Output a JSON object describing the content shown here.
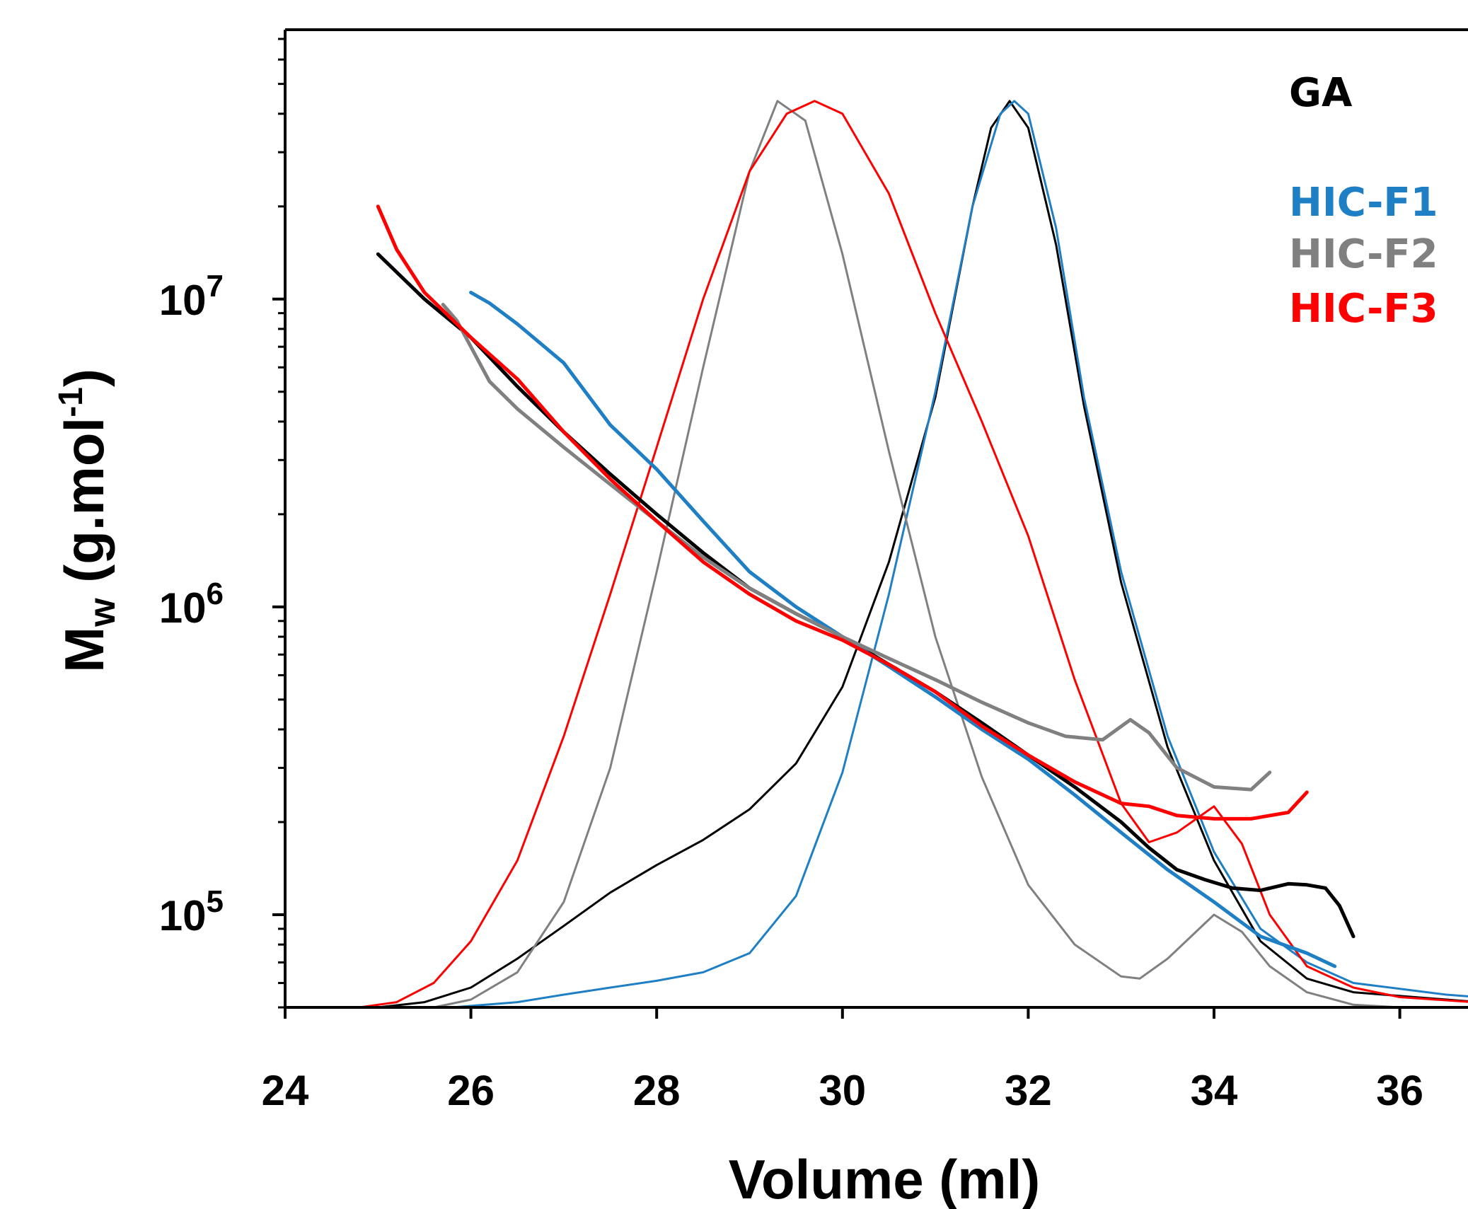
{
  "chart_data": {
    "type": "line",
    "xlabel": "Volume (ml)",
    "ylabel": {
      "main": "M",
      "sub": "w",
      "unit_pre": " (g.mol",
      "unit_sup": "-1",
      "unit_post": ")"
    },
    "xlim": [
      24,
      37.2
    ],
    "ylim": [
      50000,
      75000000
    ],
    "yscale": "log",
    "x_ticks": [
      "24",
      "26",
      "28",
      "30",
      "32",
      "34",
      "36"
    ],
    "y_ticks": [
      {
        "value": 100000,
        "base": "10",
        "exp": "5"
      },
      {
        "value": 1000000,
        "base": "10",
        "exp": "6"
      },
      {
        "value": 10000000,
        "base": "10",
        "exp": "7"
      }
    ],
    "grid": false,
    "legend_position": "top-right",
    "legend": [
      {
        "name": "GA",
        "color": "#000000"
      },
      {
        "name": "HIC-F1",
        "color": "#1f7fc4"
      },
      {
        "name": "HIC-F2",
        "color": "#808080"
      },
      {
        "name": "HIC-F3",
        "color": "#ff0000"
      }
    ],
    "mw_series": [
      {
        "name": "GA",
        "color": "#000000",
        "points": [
          [
            25.0,
            14000000
          ],
          [
            25.5,
            10000000
          ],
          [
            26.0,
            7500000
          ],
          [
            26.5,
            5200000
          ],
          [
            27.0,
            3700000
          ],
          [
            27.5,
            2700000
          ],
          [
            28.0,
            2000000
          ],
          [
            28.5,
            1500000
          ],
          [
            29.0,
            1150000
          ],
          [
            29.5,
            950000
          ],
          [
            30.0,
            800000
          ],
          [
            30.5,
            650000
          ],
          [
            31.0,
            530000
          ],
          [
            31.5,
            420000
          ],
          [
            32.0,
            330000
          ],
          [
            32.5,
            260000
          ],
          [
            33.0,
            200000
          ],
          [
            33.3,
            165000
          ],
          [
            33.6,
            140000
          ],
          [
            33.9,
            130000
          ],
          [
            34.2,
            122000
          ],
          [
            34.5,
            120000
          ],
          [
            34.8,
            126000
          ],
          [
            35.0,
            125000
          ],
          [
            35.2,
            122000
          ],
          [
            35.35,
            107000
          ],
          [
            35.5,
            85000
          ]
        ]
      },
      {
        "name": "HIC-F1",
        "color": "#1f7fc4",
        "points": [
          [
            26.0,
            10500000
          ],
          [
            26.2,
            9700000
          ],
          [
            26.5,
            8300000
          ],
          [
            27.0,
            6200000
          ],
          [
            27.5,
            3900000
          ],
          [
            28.0,
            2800000
          ],
          [
            28.5,
            1900000
          ],
          [
            29.0,
            1300000
          ],
          [
            29.5,
            1000000
          ],
          [
            30.0,
            800000
          ],
          [
            30.5,
            640000
          ],
          [
            31.0,
            510000
          ],
          [
            31.5,
            400000
          ],
          [
            32.0,
            320000
          ],
          [
            32.5,
            245000
          ],
          [
            33.0,
            185000
          ],
          [
            33.5,
            140000
          ],
          [
            34.0,
            110000
          ],
          [
            34.5,
            85000
          ],
          [
            35.0,
            75000
          ],
          [
            35.3,
            68000
          ]
        ]
      },
      {
        "name": "HIC-F2",
        "color": "#808080",
        "points": [
          [
            25.7,
            9600000
          ],
          [
            25.85,
            8500000
          ],
          [
            26.2,
            5400000
          ],
          [
            26.5,
            4400000
          ],
          [
            27.0,
            3300000
          ],
          [
            27.5,
            2500000
          ],
          [
            28.0,
            1900000
          ],
          [
            28.5,
            1450000
          ],
          [
            29.0,
            1150000
          ],
          [
            29.5,
            950000
          ],
          [
            30.0,
            800000
          ],
          [
            30.5,
            680000
          ],
          [
            31.0,
            580000
          ],
          [
            31.5,
            490000
          ],
          [
            32.0,
            420000
          ],
          [
            32.4,
            380000
          ],
          [
            32.8,
            370000
          ],
          [
            33.1,
            430000
          ],
          [
            33.3,
            390000
          ],
          [
            33.6,
            300000
          ],
          [
            34.0,
            260000
          ],
          [
            34.4,
            255000
          ],
          [
            34.6,
            290000
          ]
        ]
      },
      {
        "name": "HIC-F3",
        "color": "#ff0000",
        "points": [
          [
            25.0,
            20000000
          ],
          [
            25.2,
            14500000
          ],
          [
            25.5,
            10500000
          ],
          [
            26.0,
            7500000
          ],
          [
            26.5,
            5500000
          ],
          [
            27.0,
            3700000
          ],
          [
            27.5,
            2600000
          ],
          [
            28.0,
            1900000
          ],
          [
            28.5,
            1400000
          ],
          [
            29.0,
            1100000
          ],
          [
            29.5,
            900000
          ],
          [
            30.0,
            780000
          ],
          [
            30.5,
            650000
          ],
          [
            31.0,
            530000
          ],
          [
            31.5,
            410000
          ],
          [
            32.0,
            330000
          ],
          [
            32.5,
            270000
          ],
          [
            33.0,
            230000
          ],
          [
            33.3,
            225000
          ],
          [
            33.6,
            210000
          ],
          [
            34.0,
            205000
          ],
          [
            34.4,
            205000
          ],
          [
            34.8,
            215000
          ],
          [
            35.0,
            250000
          ]
        ]
      }
    ],
    "chromatogram_series": [
      {
        "name": "GA",
        "color": "#000000",
        "points": [
          [
            25.0,
            50000
          ],
          [
            25.5,
            52000
          ],
          [
            26.0,
            58000
          ],
          [
            26.5,
            72000
          ],
          [
            27.0,
            92000
          ],
          [
            27.5,
            118000
          ],
          [
            28.0,
            145000
          ],
          [
            28.5,
            175000
          ],
          [
            29.0,
            220000
          ],
          [
            29.5,
            310000
          ],
          [
            30.0,
            550000
          ],
          [
            30.5,
            1400000
          ],
          [
            31.0,
            4800000
          ],
          [
            31.4,
            20000000
          ],
          [
            31.6,
            36000000
          ],
          [
            31.8,
            44000000
          ],
          [
            32.0,
            36000000
          ],
          [
            32.3,
            15000000
          ],
          [
            32.6,
            4500000
          ],
          [
            33.0,
            1200000
          ],
          [
            33.5,
            350000
          ],
          [
            34.0,
            150000
          ],
          [
            34.5,
            82000
          ],
          [
            35.0,
            62000
          ],
          [
            35.5,
            56000
          ],
          [
            36.5,
            53000
          ],
          [
            37.2,
            51000
          ]
        ]
      },
      {
        "name": "HIC-F1",
        "color": "#1f7fc4",
        "points": [
          [
            25.8,
            50000
          ],
          [
            26.5,
            52000
          ],
          [
            27.0,
            55000
          ],
          [
            27.5,
            58000
          ],
          [
            28.0,
            61000
          ],
          [
            28.5,
            65000
          ],
          [
            29.0,
            75000
          ],
          [
            29.5,
            115000
          ],
          [
            30.0,
            290000
          ],
          [
            30.5,
            1100000
          ],
          [
            31.0,
            5000000
          ],
          [
            31.4,
            20000000
          ],
          [
            31.7,
            40000000
          ],
          [
            31.85,
            44000000
          ],
          [
            32.0,
            40000000
          ],
          [
            32.3,
            17000000
          ],
          [
            32.6,
            4800000
          ],
          [
            33.0,
            1300000
          ],
          [
            33.5,
            380000
          ],
          [
            34.0,
            160000
          ],
          [
            34.5,
            90000
          ],
          [
            35.0,
            70000
          ],
          [
            35.5,
            60000
          ],
          [
            36.5,
            55000
          ],
          [
            37.2,
            53000
          ]
        ]
      },
      {
        "name": "HIC-F2",
        "color": "#808080",
        "points": [
          [
            25.6,
            50000
          ],
          [
            26.0,
            53000
          ],
          [
            26.5,
            65000
          ],
          [
            27.0,
            110000
          ],
          [
            27.5,
            300000
          ],
          [
            28.0,
            1300000
          ],
          [
            28.5,
            6000000
          ],
          [
            29.0,
            26000000
          ],
          [
            29.3,
            44000000
          ],
          [
            29.6,
            38000000
          ],
          [
            30.0,
            14000000
          ],
          [
            30.5,
            3200000
          ],
          [
            31.0,
            800000
          ],
          [
            31.5,
            280000
          ],
          [
            32.0,
            125000
          ],
          [
            32.5,
            80000
          ],
          [
            33.0,
            63000
          ],
          [
            33.2,
            62000
          ],
          [
            33.5,
            72000
          ],
          [
            34.0,
            100000
          ],
          [
            34.3,
            88000
          ],
          [
            34.6,
            68000
          ],
          [
            35.0,
            56000
          ],
          [
            35.5,
            51000
          ],
          [
            36.0,
            50000
          ]
        ]
      },
      {
        "name": "HIC-F3",
        "color": "#ff0000",
        "points": [
          [
            24.8,
            50000
          ],
          [
            25.2,
            52000
          ],
          [
            25.6,
            60000
          ],
          [
            26.0,
            82000
          ],
          [
            26.5,
            150000
          ],
          [
            27.0,
            380000
          ],
          [
            27.5,
            1100000
          ],
          [
            28.0,
            3300000
          ],
          [
            28.5,
            10000000
          ],
          [
            29.0,
            26000000
          ],
          [
            29.4,
            40000000
          ],
          [
            29.7,
            44000000
          ],
          [
            30.0,
            40000000
          ],
          [
            30.5,
            22000000
          ],
          [
            31.0,
            9000000
          ],
          [
            31.5,
            4000000
          ],
          [
            32.0,
            1700000
          ],
          [
            32.5,
            580000
          ],
          [
            33.0,
            230000
          ],
          [
            33.3,
            172000
          ],
          [
            33.6,
            185000
          ],
          [
            34.0,
            225000
          ],
          [
            34.3,
            170000
          ],
          [
            34.6,
            100000
          ],
          [
            35.0,
            68000
          ],
          [
            35.5,
            58000
          ],
          [
            36.0,
            54000
          ],
          [
            37.2,
            51000
          ]
        ]
      }
    ]
  }
}
